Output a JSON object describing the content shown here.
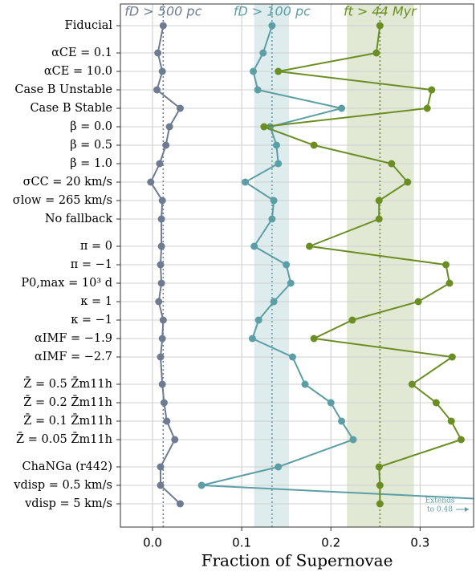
{
  "chart_data": {
    "type": "dot-line",
    "xlabel": "Fraction of Supernovae",
    "categories": [
      "Fiducial",
      "αCE = 0.1",
      "αCE = 10.0",
      "Case B Unstable",
      "Case B Stable",
      "β = 0.0",
      "β = 0.5",
      "β = 1.0",
      "σCC = 20 km/s",
      "σlow = 265 km/s",
      "No fallback",
      "π = 0",
      "π = −1",
      "P0,max = 10³ d",
      "κ = 1",
      "κ = −1",
      "αIMF = −1.9",
      "αIMF = −2.7",
      "Z̄ = 0.5 Z̄m11h",
      "Z̄ = 0.2 Z̄m11h",
      "Z̄ = 0.1 Z̄m11h",
      "Z̄ = 0.05 Z̄m11h",
      "ChaNGa (r442)",
      "vdisp = 0.5 km/s",
      "vdisp = 5 km/s"
    ],
    "series": [
      {
        "name": "fD > 500 pc",
        "color": "#6e7b91",
        "values": [
          0.012,
          0.006,
          0.011,
          0.005,
          0.031,
          0.019,
          0.015,
          0.008,
          -0.002,
          0.011,
          0.01,
          0.01,
          0.009,
          0.01,
          0.007,
          0.012,
          0.011,
          0.009,
          0.011,
          0.013,
          0.016,
          0.025,
          0.009,
          0.009,
          0.031
        ]
      },
      {
        "name": "fD > 100 pc",
        "color": "#5b9ea6",
        "band": [
          0.114,
          0.153
        ],
        "values": [
          0.134,
          0.124,
          0.113,
          0.118,
          0.212,
          0.132,
          0.139,
          0.141,
          0.104,
          0.136,
          0.134,
          0.114,
          0.15,
          0.155,
          0.136,
          0.119,
          0.112,
          0.157,
          0.171,
          0.2,
          0.212,
          0.225,
          0.141,
          0.055,
          0.48
        ]
      },
      {
        "name": "ft > 44 Myr",
        "color": "#6b8e23",
        "band": [
          0.218,
          0.293
        ],
        "values": [
          0.255,
          0.251,
          0.141,
          0.313,
          0.308,
          0.125,
          0.181,
          0.268,
          0.286,
          0.254,
          0.254,
          0.176,
          0.329,
          0.333,
          0.298,
          0.224,
          0.181,
          0.336,
          0.291,
          0.318,
          0.335,
          0.346,
          0.254,
          0.255,
          0.255
        ]
      }
    ],
    "annotation": [
      "Extends",
      "to 0.48"
    ],
    "xlim": [
      -0.036,
      0.36
    ],
    "xticks": [
      {
        "value": 0,
        "label": "0.0"
      },
      0.1,
      0.2,
      0.3
    ],
    "grid": true
  }
}
